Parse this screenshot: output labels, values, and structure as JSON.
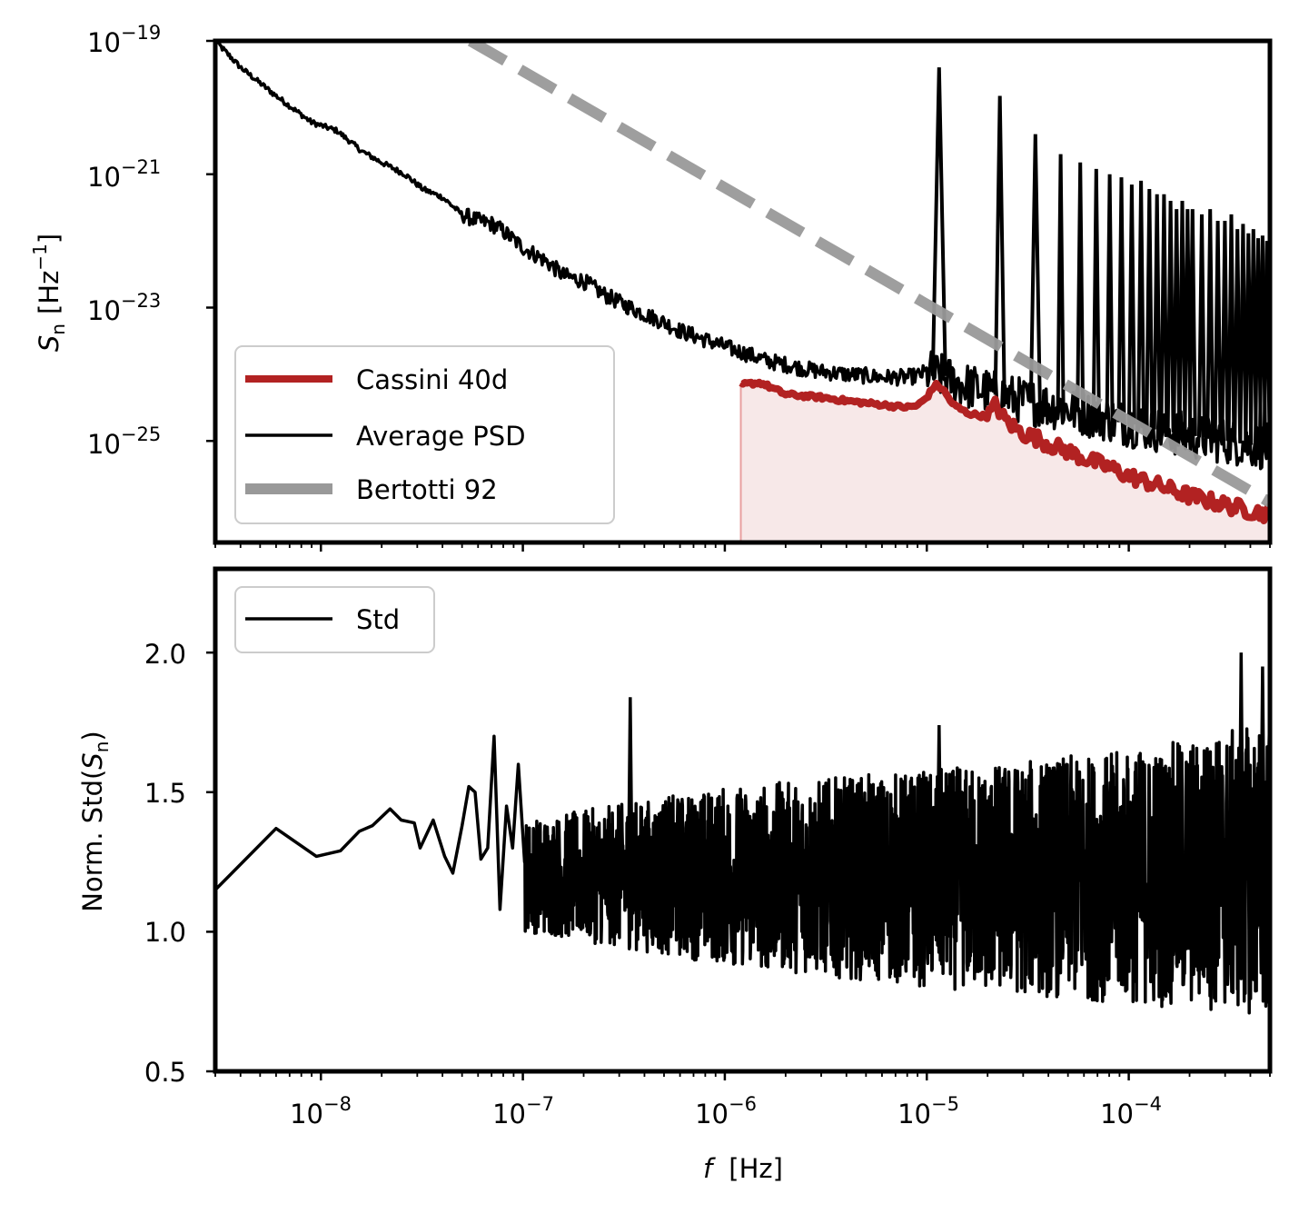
{
  "chart_data": [
    {
      "type": "line",
      "panel": "top",
      "ylabel": "S",
      "ylabel_sub": "n",
      "ylabel_unit": "[Hz",
      "ylabel_unit_exp": "−1",
      "ylabel_unit_close": "]",
      "xscale": "log",
      "yscale": "log",
      "xlim": [
        3e-09,
        0.0005
      ],
      "ylim": [
        3e-27,
        1e-19
      ],
      "xticks": [
        {
          "value": 1e-08,
          "base": "10",
          "exp": "−8"
        },
        {
          "value": 1e-07,
          "base": "10",
          "exp": "−7"
        },
        {
          "value": 1e-06,
          "base": "10",
          "exp": "−6"
        },
        {
          "value": 1e-05,
          "base": "10",
          "exp": "−5"
        },
        {
          "value": 0.0001,
          "base": "10",
          "exp": "−4"
        }
      ],
      "yticks": [
        {
          "value": 1e-19,
          "base": "10",
          "exp": "−19"
        },
        {
          "value": 1e-21,
          "base": "10",
          "exp": "−21"
        },
        {
          "value": 1e-23,
          "base": "10",
          "exp": "−23"
        },
        {
          "value": 1e-25,
          "base": "10",
          "exp": "−25"
        }
      ],
      "legend_position": "lower-left",
      "series": [
        {
          "name": "Cassini 40d",
          "color": "#b22222",
          "style": "solid-thick",
          "fill_below": true,
          "x": [
            1.2e-06,
            1.5e-06,
            2e-06,
            3e-06,
            4e-06,
            5e-06,
            6e-06,
            7e-06,
            8e-06,
            9e-06,
            1e-05,
            1.1e-05,
            1.2e-05,
            1.35e-05,
            1.6e-05,
            2e-05,
            2.2e-05,
            2.4e-05,
            2.7e-05,
            3e-05,
            3.5e-05,
            4e-05,
            5e-05,
            6e-05,
            8e-05,
            0.0001,
            0.00015,
            0.0002,
            0.0003,
            0.0004,
            0.0005
          ],
          "values": [
            7e-25,
            7.5e-25,
            5e-25,
            4.5e-25,
            4e-25,
            3.7e-25,
            3.5e-25,
            3.3e-25,
            3.2e-25,
            3.4e-25,
            4.5e-25,
            7e-25,
            6e-25,
            3.5e-25,
            2.6e-25,
            2.3e-25,
            3.5e-25,
            2.2e-25,
            1.6e-25,
            1.3e-25,
            1.1e-25,
            9e-26,
            7e-26,
            5.5e-26,
            4e-26,
            3e-26,
            2e-26,
            1.5e-26,
            1.1e-26,
            9e-27,
            8e-27
          ]
        },
        {
          "name": "Average PSD",
          "color": "#000000",
          "style": "solid",
          "x": [
            3e-09,
            4e-09,
            6e-09,
            9e-09,
            1.2e-08,
            1.6e-08,
            2e-08,
            2.6e-08,
            3.2e-08,
            4e-08,
            5e-08,
            6e-08,
            7e-08,
            8e-08,
            1e-07,
            1.3e-07,
            1.6e-07,
            2e-07,
            2.5e-07,
            3e-07,
            4e-07,
            5e-07,
            6e-07,
            8e-07,
            1e-06,
            1.3e-06,
            1.6e-06,
            2e-06,
            2.5e-06,
            3e-06,
            4e-06,
            5e-06,
            6e-06,
            7e-06,
            8e-06,
            9e-06,
            1e-05,
            1.5e-05,
            2e-05,
            3e-05,
            5e-05,
            0.0001,
            0.0002,
            0.0005
          ],
          "values": [
            1e-19,
            4e-20,
            1.5e-20,
            6e-21,
            4.5e-21,
            2.2e-21,
            1.5e-21,
            1e-21,
            6e-22,
            4.5e-22,
            2.5e-22,
            2e-22,
            1.8e-22,
            1.4e-22,
            8e-23,
            5e-23,
            3e-23,
            2.5e-23,
            1.6e-23,
            1.2e-23,
            8e-24,
            6e-24,
            4.5e-24,
            3.3e-24,
            2.6e-24,
            2e-24,
            1.6e-24,
            1.4e-24,
            1.2e-24,
            1.1e-24,
            1e-24,
            9.5e-25,
            9e-25,
            9e-25,
            9e-25,
            9.5e-25,
            1.1e-24,
            7e-25,
            5.5e-25,
            4e-25,
            3e-25,
            1.8e-25,
            1.2e-25,
            8e-26
          ]
        },
        {
          "name": "Bertotti 92",
          "color": "#999999",
          "style": "dashed-thick",
          "x": [
            5.5e-08,
            0.0005
          ],
          "values": [
            1e-19,
            1.2e-26
          ]
        }
      ],
      "spikes": [
        {
          "x": 1.15e-05,
          "peak": 4e-20
        },
        {
          "x": 2.3e-05,
          "peak": 1.5e-20
        },
        {
          "x": 3.45e-05,
          "peak": 4e-21
        },
        {
          "x": 4.6e-05,
          "peak": 2e-21
        },
        {
          "x": 5.75e-05,
          "peak": 1.5e-21
        },
        {
          "x": 6.9e-05,
          "peak": 1.2e-21
        },
        {
          "x": 8.05e-05,
          "peak": 1e-21
        },
        {
          "x": 9.2e-05,
          "peak": 9e-22
        },
        {
          "x": 0.0001035,
          "peak": 7e-22
        },
        {
          "x": 0.000115,
          "peak": 8e-22
        },
        {
          "x": 0.0001265,
          "peak": 6e-22
        },
        {
          "x": 0.000138,
          "peak": 5e-22
        },
        {
          "x": 0.0001495,
          "peak": 5e-22
        },
        {
          "x": 0.000161,
          "peak": 4e-22
        },
        {
          "x": 0.0001725,
          "peak": 3e-22
        },
        {
          "x": 0.000184,
          "peak": 4e-22
        },
        {
          "x": 0.0001955,
          "peak": 3e-22
        },
        {
          "x": 0.000207,
          "peak": 3e-22
        },
        {
          "x": 0.00023,
          "peak": 2.5e-22
        },
        {
          "x": 0.000253,
          "peak": 3e-22
        },
        {
          "x": 0.000276,
          "peak": 2e-22
        },
        {
          "x": 0.000299,
          "peak": 2e-22
        },
        {
          "x": 0.000322,
          "peak": 2.5e-22
        },
        {
          "x": 0.000345,
          "peak": 1.5e-22
        },
        {
          "x": 0.000368,
          "peak": 1.8e-22
        },
        {
          "x": 0.000391,
          "peak": 1.3e-22
        },
        {
          "x": 0.000414,
          "peak": 1.5e-22
        },
        {
          "x": 0.000437,
          "peak": 1.1e-22
        },
        {
          "x": 0.00046,
          "peak": 1.2e-22
        },
        {
          "x": 0.000483,
          "peak": 1e-22
        }
      ]
    },
    {
      "type": "line",
      "panel": "bottom",
      "ylabel": "Norm. Std(",
      "ylabel_var": "S",
      "ylabel_sub": "n",
      "ylabel_close": ")",
      "xlabel": "f",
      "xlabel_unit": "[Hz]",
      "xscale": "log",
      "xlim": [
        3e-09,
        0.0005
      ],
      "ylim": [
        0.5,
        2.3
      ],
      "yticks": [
        "0.5",
        "1.0",
        "1.5",
        "2.0"
      ],
      "legend_position": "upper-left",
      "series": [
        {
          "name": "Std",
          "color": "#000000",
          "style": "solid",
          "x": [
            3e-09,
            6e-09,
            9.5e-09,
            1.25e-08,
            1.55e-08,
            1.8e-08,
            2.2e-08,
            2.5e-08,
            2.9e-08,
            3.1e-08,
            3.6e-08,
            4.1e-08,
            4.5e-08,
            5e-08,
            5.4e-08,
            5.8e-08,
            6.2e-08,
            6.7e-08,
            7.2e-08,
            7.7e-08,
            8.3e-08,
            8.9e-08,
            9.5e-08,
            1.02e-07
          ],
          "values": [
            1.15,
            1.37,
            1.27,
            1.29,
            1.36,
            1.38,
            1.44,
            1.4,
            1.39,
            1.3,
            1.4,
            1.27,
            1.21,
            1.38,
            1.52,
            1.5,
            1.26,
            1.3,
            1.7,
            1.08,
            1.45,
            1.3,
            1.6,
            1.25
          ],
          "noise_band": {
            "x": [
              1e-07,
              1e-06,
              1e-05,
              0.0001,
              0.0005
            ],
            "lower": [
              1.0,
              0.88,
              0.8,
              0.74,
              0.7
            ],
            "upper": [
              1.4,
              1.52,
              1.58,
              1.65,
              1.75
            ]
          },
          "notable_peaks": [
            {
              "x": 3.4e-07,
              "value": 1.84
            },
            {
              "x": 1.15e-05,
              "value": 1.74
            },
            {
              "x": 0.00036,
              "value": 2.0
            },
            {
              "x": 0.00046,
              "value": 1.95
            }
          ]
        }
      ]
    }
  ]
}
